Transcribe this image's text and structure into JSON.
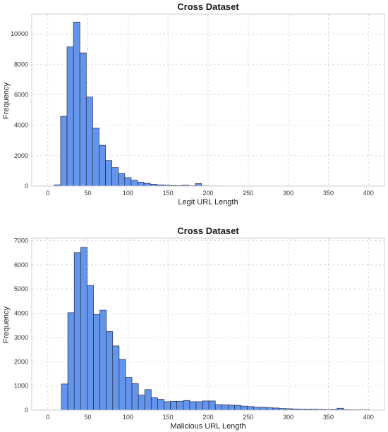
{
  "chart_data": [
    {
      "type": "bar",
      "title": "Cross Dataset",
      "xlabel": "Legit URL Length",
      "ylabel": "Frequency",
      "xlim": [
        -20,
        420
      ],
      "ylim": [
        0,
        11300
      ],
      "xticks": [
        0,
        50,
        100,
        150,
        200,
        250,
        300,
        350,
        400
      ],
      "yticks": [
        0,
        2000,
        4000,
        6000,
        8000,
        10000
      ],
      "grid": true,
      "bar_color": "#6495ED",
      "bin_edges": [
        8,
        16,
        24,
        32,
        40,
        48,
        56,
        64,
        72,
        80,
        88,
        96,
        104,
        112,
        120,
        128,
        136,
        144,
        152,
        160,
        168,
        176,
        184,
        192,
        200,
        208,
        216,
        224,
        232,
        240,
        248
      ],
      "values": [
        80,
        4580,
        9150,
        10780,
        8750,
        5850,
        3800,
        2680,
        1680,
        1220,
        820,
        560,
        380,
        260,
        180,
        120,
        80,
        60,
        40,
        30,
        60,
        20,
        160,
        15,
        10,
        10,
        8,
        5,
        5,
        3
      ]
    },
    {
      "type": "bar",
      "title": "Cross Dataset",
      "xlabel": "Malicious URL Length",
      "ylabel": "Frequency",
      "xlim": [
        -20,
        420
      ],
      "ylim": [
        0,
        7100
      ],
      "xticks": [
        0,
        50,
        100,
        150,
        200,
        250,
        300,
        350,
        400
      ],
      "yticks": [
        0,
        1000,
        2000,
        3000,
        4000,
        5000,
        6000,
        7000
      ],
      "grid": true,
      "bar_color": "#6495ED",
      "bin_edges": [
        17,
        25,
        33,
        41,
        49,
        57,
        65,
        73,
        81,
        89,
        97,
        105,
        113,
        121,
        129,
        137,
        145,
        153,
        161,
        169,
        177,
        185,
        193,
        201,
        209,
        217,
        225,
        233,
        241,
        249,
        257,
        265,
        273,
        281,
        289,
        297,
        305,
        313,
        321,
        329,
        337,
        345,
        353,
        361,
        369,
        377,
        385,
        393,
        401
      ],
      "values": [
        1080,
        4020,
        6500,
        6720,
        5150,
        3950,
        4130,
        3250,
        2650,
        2100,
        1350,
        1100,
        620,
        850,
        520,
        450,
        350,
        370,
        370,
        400,
        350,
        350,
        380,
        380,
        230,
        220,
        210,
        200,
        170,
        150,
        120,
        120,
        100,
        90,
        70,
        60,
        50,
        40,
        40,
        40,
        30,
        20,
        30,
        80,
        20,
        15,
        15,
        15
      ]
    }
  ]
}
